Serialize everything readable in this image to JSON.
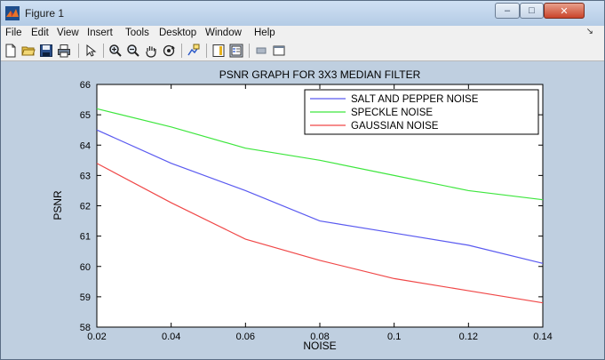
{
  "window": {
    "title": "Figure 1",
    "controls": {
      "minimize": "–",
      "maximize": "□",
      "close": "✕"
    }
  },
  "menu": {
    "items": [
      "File",
      "Edit",
      "View",
      "Insert",
      "Tools",
      "Desktop",
      "Window",
      "Help"
    ],
    "overflow_arrow": "↘"
  },
  "toolbar": {
    "icons": [
      "new-file-icon",
      "open-folder-icon",
      "save-icon",
      "print-icon",
      "select-arrow-icon",
      "zoom-in-icon",
      "zoom-out-icon",
      "pan-hand-icon",
      "rotate-3d-icon",
      "data-cursor-icon",
      "colorbar-icon",
      "legend-icon",
      "hide-plot-tools-icon",
      "show-plot-tools-icon"
    ]
  },
  "chart_data": {
    "type": "line",
    "title": "PSNR GRAPH FOR 3X3 MEDIAN FILTER",
    "xlabel": "NOISE",
    "ylabel": "PSNR",
    "xlim": [
      0.02,
      0.14
    ],
    "ylim": [
      58,
      66
    ],
    "x_ticks": [
      "0.02",
      "0.04",
      "0.06",
      "0.08",
      "0.1",
      "0.12",
      "0.14"
    ],
    "y_ticks": [
      "58",
      "59",
      "60",
      "61",
      "62",
      "63",
      "64",
      "65",
      "66"
    ],
    "x": [
      0.02,
      0.04,
      0.06,
      0.08,
      0.1,
      0.12,
      0.14
    ],
    "series": [
      {
        "name": "SALT AND PEPPER NOISE",
        "color": "#5a5af0",
        "values": [
          64.5,
          63.4,
          62.5,
          61.5,
          61.1,
          60.7,
          60.1
        ]
      },
      {
        "name": "SPECKLE NOISE",
        "color": "#3ee63e",
        "values": [
          65.2,
          64.6,
          63.9,
          63.5,
          63.0,
          62.5,
          62.2
        ]
      },
      {
        "name": "GAUSSIAN NOISE",
        "color": "#f04848",
        "values": [
          63.4,
          62.1,
          60.9,
          60.2,
          59.6,
          59.2,
          58.8
        ]
      }
    ],
    "grid": false,
    "legend_position": "top-right"
  }
}
